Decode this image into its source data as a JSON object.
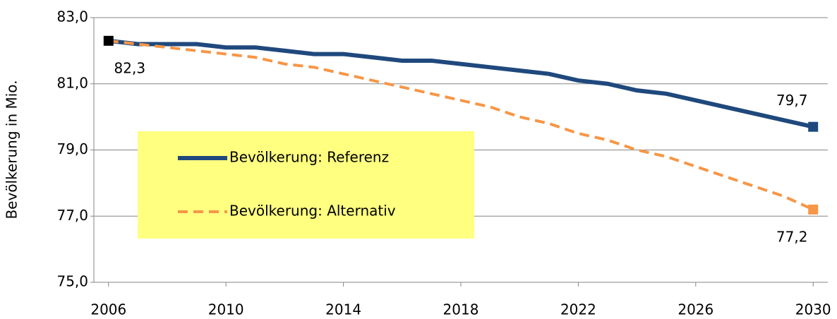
{
  "chart_data": {
    "type": "line",
    "y_label": "Bevölkerung in Mio.",
    "x": [
      2006,
      2007,
      2008,
      2009,
      2010,
      2011,
      2012,
      2013,
      2014,
      2015,
      2016,
      2017,
      2018,
      2019,
      2020,
      2021,
      2022,
      2023,
      2024,
      2025,
      2026,
      2027,
      2028,
      2029,
      2030
    ],
    "series": [
      {
        "name": "Bevölkerung: Referenz",
        "color": "#1f497d",
        "dashed": false,
        "values": [
          82.3,
          82.2,
          82.2,
          82.2,
          82.1,
          82.1,
          82.0,
          81.9,
          81.9,
          81.8,
          81.7,
          81.7,
          81.6,
          81.5,
          81.4,
          81.3,
          81.1,
          81.0,
          80.8,
          80.7,
          80.5,
          80.3,
          80.1,
          79.9,
          79.7
        ],
        "value_labels": [
          "82,3",
          null,
          null,
          null,
          null,
          null,
          null,
          null,
          null,
          null,
          null,
          null,
          null,
          null,
          null,
          null,
          null,
          null,
          null,
          null,
          null,
          null,
          null,
          null,
          "79,7"
        ]
      },
      {
        "name": "Bevölkerung: Alternativ",
        "color": "#f79646",
        "dashed": true,
        "values": [
          82.3,
          82.2,
          82.1,
          82.0,
          81.9,
          81.8,
          81.6,
          81.5,
          81.3,
          81.1,
          80.9,
          80.7,
          80.5,
          80.3,
          80.0,
          79.8,
          79.5,
          79.3,
          79.0,
          78.8,
          78.5,
          78.2,
          77.9,
          77.6,
          77.2
        ],
        "value_labels": [
          null,
          null,
          null,
          null,
          null,
          null,
          null,
          null,
          null,
          null,
          null,
          null,
          null,
          null,
          null,
          null,
          null,
          null,
          null,
          null,
          null,
          null,
          null,
          null,
          "77,2"
        ]
      }
    ],
    "start_marker_color": "#000000",
    "xlim": [
      2005.5,
      2030.5
    ],
    "xticks": [
      2006,
      2010,
      2014,
      2018,
      2022,
      2026,
      2030
    ],
    "ylim": [
      75,
      83
    ],
    "yticks": [
      {
        "value": 75,
        "label": "75,0"
      },
      {
        "value": 77,
        "label": "77,0"
      },
      {
        "value": 79,
        "label": "79,0"
      },
      {
        "value": 81,
        "label": "81,0"
      },
      {
        "value": 83,
        "label": "83,0"
      }
    ],
    "grid": true,
    "legend_position": "center-left",
    "legend_color": "#ffff80"
  }
}
